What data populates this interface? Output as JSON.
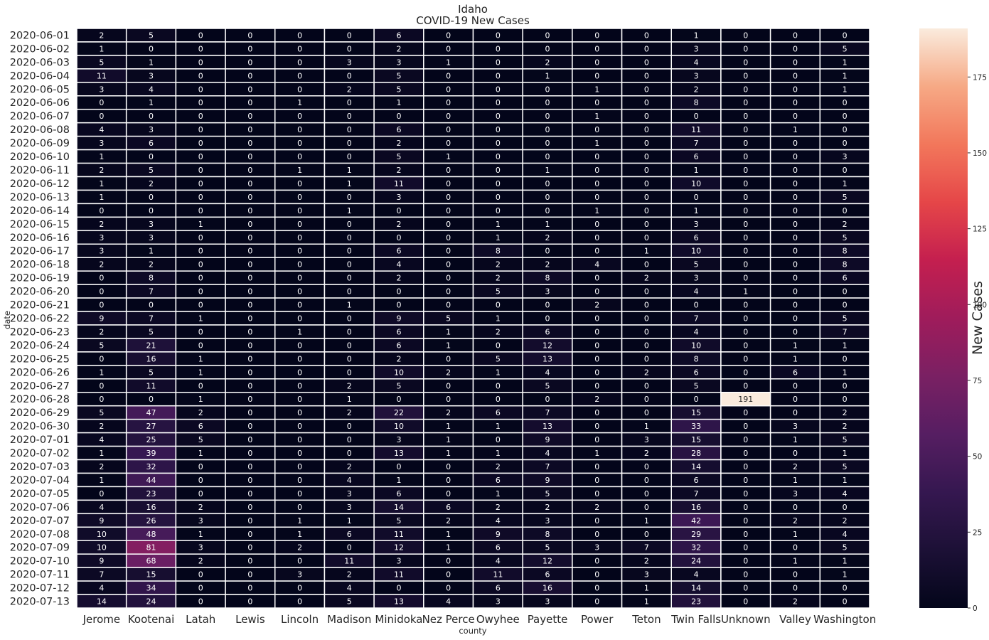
{
  "chart_data": {
    "type": "heatmap",
    "title": "Idaho",
    "subtitle": "COVID-19 New Cases",
    "xlabel": "county",
    "ylabel": "date",
    "colorbar_label": "New Cases",
    "colorbar_ticks": [
      0,
      25,
      50,
      75,
      100,
      125,
      150,
      175
    ],
    "value_range": [
      0,
      191
    ],
    "colormap": "rocket",
    "columns": [
      "Jerome",
      "Kootenai",
      "Latah",
      "Lewis",
      "Lincoln",
      "Madison",
      "Minidoka",
      "Nez Perce",
      "Owyhee",
      "Payette",
      "Power",
      "Teton",
      "Twin Falls",
      "Unknown",
      "Valley",
      "Washington"
    ],
    "rows": [
      "2020-06-01",
      "2020-06-02",
      "2020-06-03",
      "2020-06-04",
      "2020-06-05",
      "2020-06-06",
      "2020-06-07",
      "2020-06-08",
      "2020-06-09",
      "2020-06-10",
      "2020-06-11",
      "2020-06-12",
      "2020-06-13",
      "2020-06-14",
      "2020-06-15",
      "2020-06-16",
      "2020-06-17",
      "2020-06-18",
      "2020-06-19",
      "2020-06-20",
      "2020-06-21",
      "2020-06-22",
      "2020-06-23",
      "2020-06-24",
      "2020-06-25",
      "2020-06-26",
      "2020-06-27",
      "2020-06-28",
      "2020-06-29",
      "2020-06-30",
      "2020-07-01",
      "2020-07-02",
      "2020-07-03",
      "2020-07-04",
      "2020-07-05",
      "2020-07-06",
      "2020-07-07",
      "2020-07-08",
      "2020-07-09",
      "2020-07-10",
      "2020-07-11",
      "2020-07-12",
      "2020-07-13"
    ],
    "values": [
      [
        2,
        5,
        0,
        0,
        0,
        0,
        6,
        0,
        0,
        0,
        0,
        0,
        1,
        0,
        0,
        0
      ],
      [
        1,
        0,
        0,
        0,
        0,
        0,
        2,
        0,
        0,
        0,
        0,
        0,
        3,
        0,
        0,
        5
      ],
      [
        5,
        1,
        0,
        0,
        0,
        3,
        3,
        1,
        0,
        2,
        0,
        0,
        4,
        0,
        0,
        1
      ],
      [
        11,
        3,
        0,
        0,
        0,
        0,
        5,
        0,
        0,
        1,
        0,
        0,
        3,
        0,
        0,
        1
      ],
      [
        3,
        4,
        0,
        0,
        0,
        2,
        5,
        0,
        0,
        0,
        1,
        0,
        2,
        0,
        0,
        1
      ],
      [
        0,
        1,
        0,
        0,
        1,
        0,
        1,
        0,
        0,
        0,
        0,
        0,
        8,
        0,
        0,
        0
      ],
      [
        0,
        0,
        0,
        0,
        0,
        0,
        0,
        0,
        0,
        0,
        1,
        0,
        0,
        0,
        0,
        0
      ],
      [
        4,
        3,
        0,
        0,
        0,
        0,
        6,
        0,
        0,
        0,
        0,
        0,
        11,
        0,
        1,
        0
      ],
      [
        3,
        6,
        0,
        0,
        0,
        0,
        2,
        0,
        0,
        0,
        1,
        0,
        7,
        0,
        0,
        0
      ],
      [
        1,
        0,
        0,
        0,
        0,
        0,
        5,
        1,
        0,
        0,
        0,
        0,
        6,
        0,
        0,
        3
      ],
      [
        2,
        5,
        0,
        0,
        1,
        1,
        2,
        0,
        0,
        1,
        0,
        0,
        1,
        0,
        0,
        0
      ],
      [
        1,
        2,
        0,
        0,
        0,
        1,
        11,
        0,
        0,
        0,
        0,
        0,
        10,
        0,
        0,
        1
      ],
      [
        1,
        0,
        0,
        0,
        0,
        0,
        3,
        0,
        0,
        0,
        0,
        0,
        0,
        0,
        0,
        5
      ],
      [
        0,
        0,
        0,
        0,
        0,
        1,
        0,
        0,
        0,
        0,
        1,
        0,
        1,
        0,
        0,
        0
      ],
      [
        2,
        3,
        1,
        0,
        0,
        0,
        2,
        0,
        1,
        1,
        0,
        0,
        3,
        0,
        0,
        2
      ],
      [
        3,
        3,
        0,
        0,
        0,
        0,
        0,
        0,
        1,
        2,
        0,
        0,
        6,
        0,
        0,
        5
      ],
      [
        3,
        1,
        0,
        0,
        0,
        0,
        6,
        0,
        8,
        0,
        0,
        1,
        10,
        0,
        0,
        8
      ],
      [
        2,
        2,
        0,
        0,
        0,
        0,
        4,
        0,
        2,
        2,
        4,
        0,
        5,
        0,
        0,
        8
      ],
      [
        0,
        8,
        0,
        0,
        0,
        0,
        2,
        0,
        2,
        8,
        0,
        2,
        3,
        0,
        0,
        6
      ],
      [
        0,
        7,
        0,
        0,
        0,
        0,
        0,
        0,
        5,
        3,
        0,
        0,
        4,
        1,
        0,
        0
      ],
      [
        0,
        0,
        0,
        0,
        0,
        1,
        0,
        0,
        0,
        0,
        2,
        0,
        0,
        0,
        0,
        0
      ],
      [
        9,
        7,
        1,
        0,
        0,
        0,
        9,
        5,
        1,
        0,
        0,
        0,
        7,
        0,
        0,
        5
      ],
      [
        2,
        5,
        0,
        0,
        1,
        0,
        6,
        1,
        2,
        6,
        0,
        0,
        4,
        0,
        0,
        7
      ],
      [
        5,
        21,
        0,
        0,
        0,
        0,
        6,
        1,
        0,
        12,
        0,
        0,
        10,
        0,
        1,
        1
      ],
      [
        0,
        16,
        1,
        0,
        0,
        0,
        2,
        0,
        5,
        13,
        0,
        0,
        8,
        0,
        1,
        0
      ],
      [
        1,
        5,
        1,
        0,
        0,
        0,
        10,
        2,
        1,
        4,
        0,
        2,
        6,
        0,
        6,
        1
      ],
      [
        0,
        11,
        0,
        0,
        0,
        2,
        5,
        0,
        0,
        5,
        0,
        0,
        5,
        0,
        0,
        0
      ],
      [
        0,
        0,
        1,
        0,
        0,
        1,
        0,
        0,
        0,
        0,
        2,
        0,
        0,
        191,
        0,
        0
      ],
      [
        5,
        47,
        2,
        0,
        0,
        2,
        22,
        2,
        6,
        7,
        0,
        0,
        15,
        0,
        0,
        2
      ],
      [
        2,
        27,
        6,
        0,
        0,
        0,
        10,
        1,
        1,
        13,
        0,
        1,
        33,
        0,
        3,
        2
      ],
      [
        4,
        25,
        5,
        0,
        0,
        0,
        3,
        1,
        0,
        9,
        0,
        3,
        15,
        0,
        1,
        5
      ],
      [
        1,
        39,
        1,
        0,
        0,
        0,
        13,
        1,
        1,
        4,
        1,
        2,
        28,
        0,
        0,
        1
      ],
      [
        2,
        32,
        0,
        0,
        0,
        2,
        0,
        0,
        2,
        7,
        0,
        0,
        14,
        0,
        2,
        5
      ],
      [
        1,
        44,
        0,
        0,
        0,
        4,
        1,
        0,
        6,
        9,
        0,
        0,
        6,
        0,
        1,
        1
      ],
      [
        0,
        23,
        0,
        0,
        0,
        3,
        6,
        0,
        1,
        5,
        0,
        0,
        7,
        0,
        3,
        4
      ],
      [
        4,
        16,
        2,
        0,
        0,
        3,
        14,
        6,
        2,
        2,
        2,
        0,
        16,
        0,
        0,
        0
      ],
      [
        9,
        26,
        3,
        0,
        1,
        1,
        5,
        2,
        4,
        3,
        0,
        1,
        42,
        0,
        2,
        2
      ],
      [
        10,
        48,
        1,
        0,
        1,
        6,
        11,
        1,
        9,
        8,
        0,
        0,
        29,
        0,
        1,
        4
      ],
      [
        10,
        81,
        3,
        0,
        2,
        0,
        12,
        1,
        6,
        5,
        3,
        7,
        32,
        0,
        0,
        5
      ],
      [
        9,
        68,
        2,
        0,
        0,
        11,
        3,
        0,
        4,
        12,
        0,
        2,
        24,
        0,
        1,
        1
      ],
      [
        7,
        15,
        0,
        0,
        3,
        2,
        11,
        0,
        11,
        6,
        0,
        3,
        4,
        0,
        0,
        1
      ],
      [
        4,
        34,
        0,
        0,
        0,
        4,
        0,
        0,
        6,
        16,
        0,
        1,
        14,
        0,
        0,
        0
      ],
      [
        14,
        24,
        0,
        0,
        0,
        5,
        13,
        4,
        3,
        3,
        0,
        1,
        23,
        0,
        2,
        0
      ]
    ]
  }
}
